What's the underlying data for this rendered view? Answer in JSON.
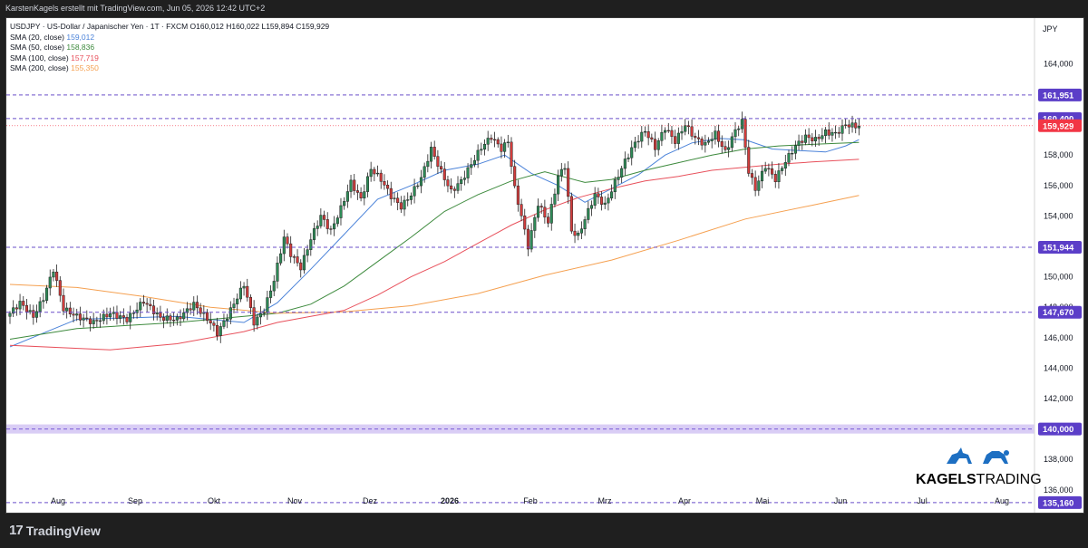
{
  "header": {
    "attribution": "KarstenKagels erstellt mit TradingView.com, Jun 05, 2026 12:42 UTC+2"
  },
  "legend": {
    "symbol_line": "USDJPY · US-Dollar / Japanischer Yen · 1T · FXCM  O160,012  H160,022  L159,894  C159,929",
    "sma": [
      {
        "label": "SMA (20, close)",
        "value": "159,012",
        "color": "#4a82d9"
      },
      {
        "label": "SMA (50, close)",
        "value": "158,836",
        "color": "#3d8a3d"
      },
      {
        "label": "SMA (100, close)",
        "value": "157,719",
        "color": "#e8505b"
      },
      {
        "label": "SMA (200, close)",
        "value": "155,350",
        "color": "#f5a050"
      }
    ]
  },
  "footer": {
    "logo_text": "TradingView",
    "logo_mark": "17"
  },
  "brand": {
    "text_bold": "KAGELS",
    "text_light": "TRADING",
    "icon": "bull-bear-icon"
  },
  "chart_data": {
    "type": "candlestick",
    "currency": "JPY",
    "ylim": [
      134.5,
      167
    ],
    "y_ticks": [
      136,
      138,
      140,
      142,
      144,
      146,
      148,
      150,
      152,
      154,
      156,
      158,
      160,
      162,
      164
    ],
    "y_tick_labels": [
      "136,000",
      "138,000",
      "140,000",
      "142,000",
      "144,000",
      "146,000",
      "148,000",
      "150,000",
      "152,000",
      "154,000",
      "156,000",
      "158,000",
      "160,000",
      "162,000",
      "164,000"
    ],
    "x_labels": [
      "Aug",
      "Sep",
      "Okt",
      "Nov",
      "Dez",
      "2026",
      "Feb",
      "Mrz",
      "Apr",
      "Mai",
      "Jun",
      "Jul",
      "Aug"
    ],
    "last_close": {
      "value": 159.929,
      "label": "159,929",
      "color": "#f23645"
    },
    "levels": [
      {
        "value": 161.951,
        "label": "161,951"
      },
      {
        "value": 160.4,
        "label": "160,400"
      },
      {
        "value": 151.944,
        "label": "151,944"
      },
      {
        "value": 147.67,
        "label": "147,670"
      },
      {
        "value": 140.0,
        "label": "140,000",
        "band": [
          139.7,
          140.3
        ]
      },
      {
        "value": 135.16,
        "label": "135,160"
      }
    ],
    "close_path": [
      [
        0,
        147.6
      ],
      [
        3,
        148.3
      ],
      [
        7,
        147.4
      ],
      [
        10,
        148.6
      ],
      [
        13,
        150.5
      ],
      [
        16,
        147.9
      ],
      [
        20,
        147.4
      ],
      [
        25,
        147.0
      ],
      [
        30,
        147.6
      ],
      [
        35,
        147.2
      ],
      [
        40,
        148.4
      ],
      [
        45,
        147.3
      ],
      [
        50,
        147.2
      ],
      [
        55,
        148.2
      ],
      [
        60,
        147.0
      ],
      [
        62,
        146.3
      ],
      [
        65,
        147.4
      ],
      [
        70,
        149.5
      ],
      [
        73,
        147.0
      ],
      [
        76,
        147.8
      ],
      [
        79,
        149.8
      ],
      [
        82,
        152.6
      ],
      [
        84,
        151.5
      ],
      [
        87,
        150.6
      ],
      [
        90,
        152.5
      ],
      [
        93,
        154.0
      ],
      [
        96,
        153.0
      ],
      [
        99,
        154.5
      ],
      [
        102,
        156.2
      ],
      [
        105,
        155.1
      ],
      [
        108,
        157.1
      ],
      [
        111,
        156.4
      ],
      [
        114,
        155.3
      ],
      [
        117,
        154.6
      ],
      [
        120,
        155.4
      ],
      [
        123,
        156.5
      ],
      [
        126,
        158.4
      ],
      [
        129,
        156.9
      ],
      [
        132,
        155.6
      ],
      [
        135,
        156.3
      ],
      [
        138,
        157.4
      ],
      [
        141,
        158.5
      ],
      [
        144,
        159.2
      ],
      [
        147,
        158.4
      ],
      [
        149,
        158.9
      ],
      [
        151,
        155.8
      ],
      [
        153,
        154.0
      ],
      [
        155,
        152.0
      ],
      [
        158,
        154.8
      ],
      [
        161,
        153.6
      ],
      [
        164,
        156.6
      ],
      [
        166,
        157.3
      ],
      [
        168,
        153.0
      ],
      [
        170,
        152.7
      ],
      [
        172,
        153.8
      ],
      [
        175,
        155.4
      ],
      [
        178,
        154.7
      ],
      [
        181,
        156.2
      ],
      [
        184,
        157.6
      ],
      [
        187,
        158.8
      ],
      [
        190,
        159.6
      ],
      [
        193,
        158.5
      ],
      [
        196,
        159.8
      ],
      [
        199,
        158.9
      ],
      [
        202,
        160.0
      ],
      [
        205,
        159.1
      ],
      [
        208,
        158.7
      ],
      [
        211,
        159.4
      ],
      [
        214,
        158.2
      ],
      [
        217,
        159.6
      ],
      [
        219,
        160.2
      ],
      [
        221,
        156.9
      ],
      [
        223,
        155.8
      ],
      [
        226,
        157.3
      ],
      [
        229,
        156.4
      ],
      [
        232,
        157.6
      ],
      [
        235,
        158.6
      ],
      [
        238,
        159.2
      ],
      [
        241,
        159.0
      ],
      [
        244,
        159.5
      ],
      [
        247,
        159.4
      ],
      [
        250,
        160.0
      ],
      [
        253,
        159.9
      ],
      [
        254,
        159.929
      ]
    ],
    "sma_paths": [
      {
        "name": "SMA 20",
        "color": "#4a82d9",
        "points": [
          [
            0,
            145.4
          ],
          [
            20,
            147.2
          ],
          [
            50,
            147.4
          ],
          [
            70,
            147.0
          ],
          [
            80,
            148.3
          ],
          [
            90,
            150.5
          ],
          [
            100,
            152.8
          ],
          [
            110,
            155.1
          ],
          [
            120,
            156.0
          ],
          [
            130,
            157.0
          ],
          [
            140,
            157.4
          ],
          [
            148,
            158.0
          ],
          [
            156,
            156.8
          ],
          [
            164,
            156.0
          ],
          [
            172,
            154.9
          ],
          [
            180,
            155.8
          ],
          [
            188,
            156.7
          ],
          [
            196,
            158.0
          ],
          [
            204,
            158.8
          ],
          [
            212,
            159.1
          ],
          [
            220,
            159.0
          ],
          [
            228,
            158.4
          ],
          [
            236,
            158.3
          ],
          [
            244,
            158.2
          ],
          [
            250,
            158.6
          ],
          [
            254,
            159.012
          ]
        ]
      },
      {
        "name": "SMA 50",
        "color": "#3d8a3d",
        "points": [
          [
            0,
            145.9
          ],
          [
            20,
            146.6
          ],
          [
            50,
            147.0
          ],
          [
            70,
            147.4
          ],
          [
            80,
            147.6
          ],
          [
            90,
            148.2
          ],
          [
            100,
            149.4
          ],
          [
            110,
            151.0
          ],
          [
            120,
            152.6
          ],
          [
            130,
            154.3
          ],
          [
            140,
            155.4
          ],
          [
            150,
            156.3
          ],
          [
            160,
            156.9
          ],
          [
            172,
            156.2
          ],
          [
            180,
            156.4
          ],
          [
            190,
            157.0
          ],
          [
            200,
            157.5
          ],
          [
            210,
            158.0
          ],
          [
            220,
            158.4
          ],
          [
            230,
            158.6
          ],
          [
            240,
            158.7
          ],
          [
            254,
            158.836
          ]
        ]
      },
      {
        "name": "SMA 100",
        "color": "#e8505b",
        "points": [
          [
            0,
            145.5
          ],
          [
            30,
            145.2
          ],
          [
            50,
            145.6
          ],
          [
            70,
            146.4
          ],
          [
            80,
            147.0
          ],
          [
            90,
            147.4
          ],
          [
            100,
            147.8
          ],
          [
            110,
            148.8
          ],
          [
            120,
            150.0
          ],
          [
            130,
            151.0
          ],
          [
            140,
            152.2
          ],
          [
            150,
            153.4
          ],
          [
            160,
            154.4
          ],
          [
            170,
            155.2
          ],
          [
            180,
            155.8
          ],
          [
            190,
            156.3
          ],
          [
            200,
            156.6
          ],
          [
            210,
            157.0
          ],
          [
            220,
            157.2
          ],
          [
            230,
            157.4
          ],
          [
            240,
            157.55
          ],
          [
            254,
            157.719
          ]
        ]
      },
      {
        "name": "SMA 200",
        "color": "#f5a050",
        "points": [
          [
            0,
            149.5
          ],
          [
            20,
            149.3
          ],
          [
            40,
            148.7
          ],
          [
            60,
            148.0
          ],
          [
            80,
            147.6
          ],
          [
            100,
            147.7
          ],
          [
            120,
            148.1
          ],
          [
            140,
            148.9
          ],
          [
            160,
            150.1
          ],
          [
            180,
            151.1
          ],
          [
            200,
            152.4
          ],
          [
            220,
            153.8
          ],
          [
            240,
            154.7
          ],
          [
            254,
            155.35
          ]
        ]
      }
    ]
  }
}
